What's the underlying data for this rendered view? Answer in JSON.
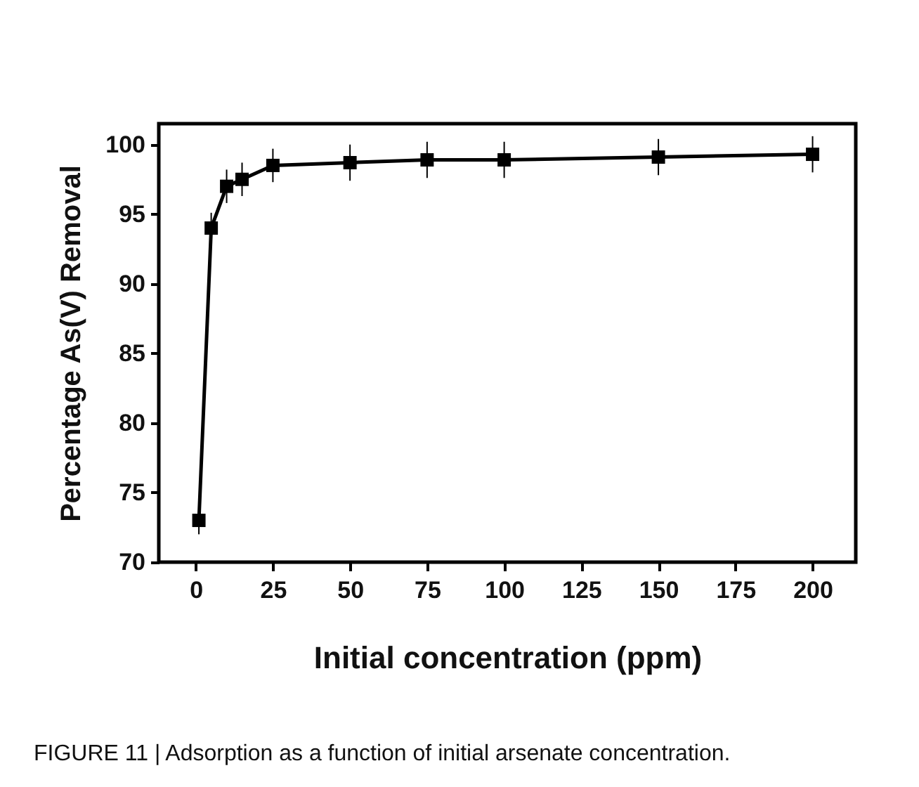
{
  "chart_data": {
    "type": "line",
    "xlabel": "Initial concentration (ppm)",
    "ylabel": "Percentage As(V) Removal",
    "annotations": [
      "FIGURE 11 | Adsorption as a function of initial arsenate concentration."
    ],
    "x": [
      1,
      5,
      10,
      15,
      25,
      50,
      75,
      100,
      150,
      200
    ],
    "series": [
      {
        "color": "#000000",
        "values": [
          73,
          94,
          97,
          97.5,
          98.5,
          98.7,
          98.9,
          98.9,
          99.1,
          99.3
        ],
        "errors": [
          1,
          1.1,
          1.2,
          1.2,
          1.2,
          1.3,
          1.3,
          1.3,
          1.3,
          1.3
        ]
      }
    ],
    "xlim": [
      -12,
      214
    ],
    "xticks": [
      0,
      25,
      50,
      75,
      100,
      125,
      150,
      175,
      200
    ],
    "ylim": [
      70,
      101.5
    ],
    "yticks": [
      70,
      75,
      80,
      85,
      90,
      95,
      100
    ],
    "marker": "square",
    "line_style": "solid"
  }
}
